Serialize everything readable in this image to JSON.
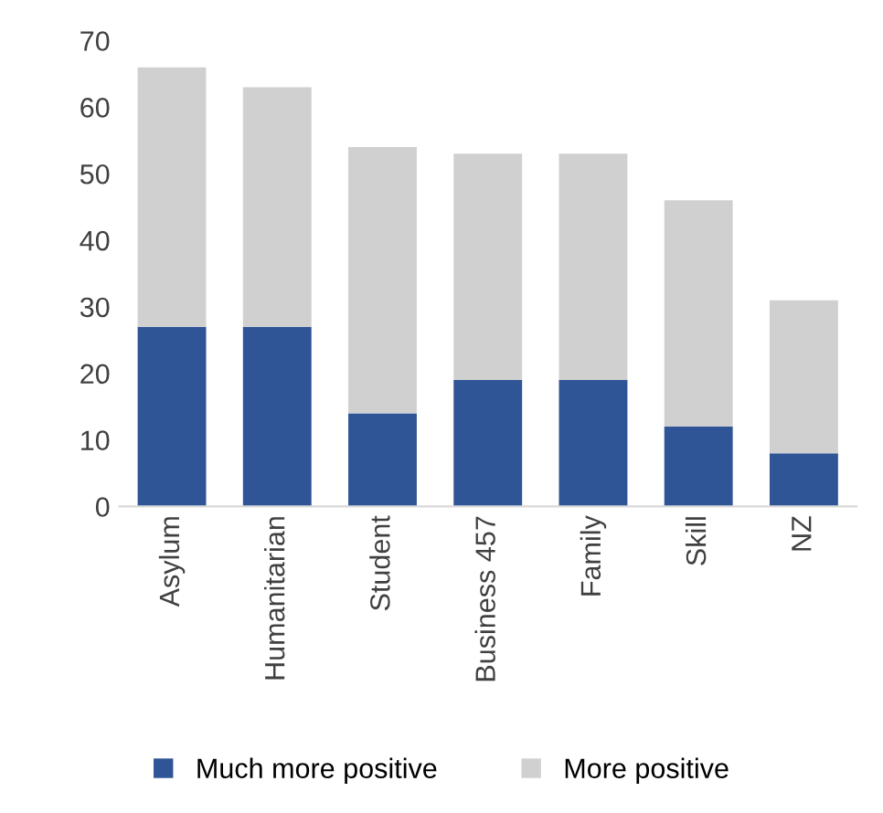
{
  "chart_data": {
    "type": "bar",
    "stacked": true,
    "categories": [
      "Asylum",
      "Humanitarian",
      "Student",
      "Business 457",
      "Family",
      "Skill",
      "NZ"
    ],
    "series": [
      {
        "name": "Much more positive",
        "color": "#2f5597",
        "values": [
          27,
          27,
          14,
          19,
          19,
          12,
          8
        ]
      },
      {
        "name": "More positive",
        "color": "#d0d0d0",
        "values": [
          39,
          36,
          40,
          34,
          34,
          34,
          23
        ]
      }
    ],
    "ylim": [
      0,
      70
    ],
    "yticks": [
      0,
      10,
      20,
      30,
      40,
      50,
      60,
      70
    ],
    "grid": false,
    "legend": "bottom"
  }
}
